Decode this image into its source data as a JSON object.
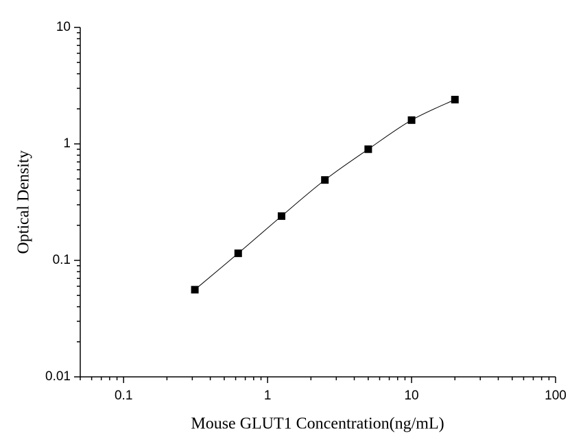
{
  "chart_data": {
    "type": "scatter",
    "x_label": "Mouse GLUT1 Concentration(ng/mL)",
    "y_label": "Optical Density",
    "x": [
      0.3125,
      0.625,
      1.25,
      2.5,
      5,
      10,
      20
    ],
    "series": [
      {
        "color": "#000000",
        "values": [
          0.056,
          0.115,
          0.24,
          0.49,
          0.9,
          1.6,
          2.4
        ]
      }
    ],
    "xlim": [
      0.05,
      100
    ],
    "ylim": [
      0.01,
      10
    ],
    "xticks": [
      0.1,
      1,
      10,
      100
    ],
    "yticks": [
      0.01,
      0.1,
      1,
      10
    ],
    "xscale": "log",
    "yscale": "log",
    "grid": false,
    "fit_curve": true
  }
}
